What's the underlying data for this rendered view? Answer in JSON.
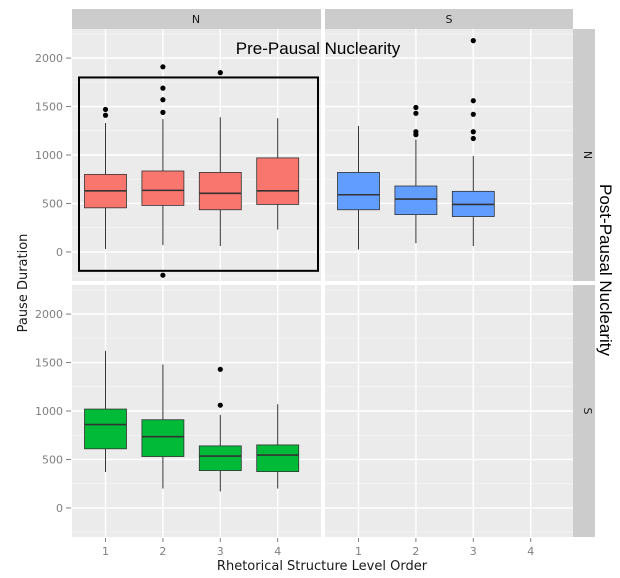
{
  "chart_data": {
    "type": "boxplot",
    "xlabel": "Rhetorical Structure Level Order",
    "ylabel": "Pause Duration",
    "ylim": [
      -300,
      2300
    ],
    "y_ticks": [
      0,
      500,
      1000,
      1500,
      2000
    ],
    "x_ticks": [
      "1",
      "2",
      "3",
      "4"
    ],
    "col_facets": [
      "N",
      "S"
    ],
    "row_facets": [
      "N",
      "S"
    ],
    "annotations": {
      "top": "Pre-Pausal Nuclearity",
      "right": "Post-Pausal Nuclearity"
    },
    "colors": {
      "NN": "#F8766D",
      "SN": "#619CFF",
      "NS": "#00BA38"
    },
    "panels": [
      {
        "col": "N",
        "row": "N",
        "color": "#F8766D",
        "highlighted": true,
        "boxes": [
          {
            "x": "1",
            "lower_whisker": 30,
            "q1": 455,
            "median": 630,
            "q3": 800,
            "upper_whisker": 1330,
            "outliers": [
              1410,
              1470
            ]
          },
          {
            "x": "2",
            "lower_whisker": 70,
            "q1": 480,
            "median": 635,
            "q3": 835,
            "upper_whisker": 1370,
            "outliers": [
              -240,
              1440,
              1570,
              1690,
              1910
            ]
          },
          {
            "x": "3",
            "lower_whisker": 60,
            "q1": 435,
            "median": 605,
            "q3": 820,
            "upper_whisker": 1390,
            "outliers": [
              1850
            ]
          },
          {
            "x": "4",
            "lower_whisker": 230,
            "q1": 490,
            "median": 630,
            "q3": 970,
            "upper_whisker": 1380,
            "outliers": []
          }
        ]
      },
      {
        "col": "S",
        "row": "N",
        "color": "#619CFF",
        "highlighted": false,
        "boxes": [
          {
            "x": "1",
            "lower_whisker": 25,
            "q1": 435,
            "median": 590,
            "q3": 820,
            "upper_whisker": 1300,
            "outliers": []
          },
          {
            "x": "2",
            "lower_whisker": 90,
            "q1": 385,
            "median": 545,
            "q3": 680,
            "upper_whisker": 1160,
            "outliers": [
              1210,
              1240,
              1430,
              1490
            ]
          },
          {
            "x": "3",
            "lower_whisker": 60,
            "q1": 365,
            "median": 490,
            "q3": 625,
            "upper_whisker": 990,
            "outliers": [
              1170,
              1240,
              1420,
              1560,
              2180
            ]
          }
        ]
      },
      {
        "col": "N",
        "row": "S",
        "color": "#00BA38",
        "highlighted": false,
        "boxes": [
          {
            "x": "1",
            "lower_whisker": 370,
            "q1": 610,
            "median": 860,
            "q3": 1020,
            "upper_whisker": 1620,
            "outliers": []
          },
          {
            "x": "2",
            "lower_whisker": 200,
            "q1": 530,
            "median": 735,
            "q3": 910,
            "upper_whisker": 1480,
            "outliers": []
          },
          {
            "x": "3",
            "lower_whisker": 170,
            "q1": 385,
            "median": 535,
            "q3": 640,
            "upper_whisker": 960,
            "outliers": [
              1060,
              1430
            ]
          },
          {
            "x": "4",
            "lower_whisker": 200,
            "q1": 375,
            "median": 545,
            "q3": 650,
            "upper_whisker": 1070,
            "outliers": []
          }
        ]
      },
      {
        "col": "S",
        "row": "S",
        "color": "",
        "highlighted": false,
        "boxes": []
      }
    ]
  }
}
